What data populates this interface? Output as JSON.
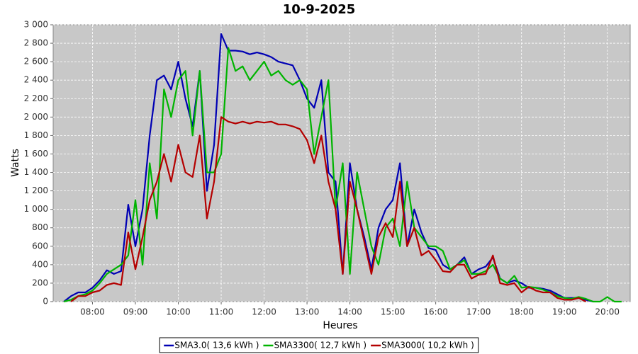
{
  "chart_data": {
    "type": "line",
    "title": "10-9-2025",
    "x_label": "Heures",
    "y_label": "Watts",
    "x": [
      440,
      450,
      460,
      470,
      480,
      490,
      500,
      510,
      520,
      530,
      540,
      550,
      560,
      570,
      580,
      590,
      600,
      610,
      620,
      630,
      640,
      650,
      660,
      670,
      680,
      690,
      700,
      710,
      720,
      730,
      740,
      750,
      760,
      770,
      780,
      790,
      800,
      810,
      820,
      830,
      840,
      850,
      860,
      870,
      880,
      890,
      900,
      910,
      920,
      930,
      940,
      950,
      960,
      970,
      980,
      990,
      1000,
      1010,
      1020,
      1030,
      1040,
      1050,
      1060,
      1070,
      1080,
      1090,
      1100,
      1110,
      1120,
      1130,
      1140,
      1150,
      1160,
      1170,
      1180,
      1190,
      1200,
      1210,
      1220
    ],
    "series": [
      {
        "name": "SMA3.0( 13,6 kWh )",
        "color": "#0000b4",
        "values": [
          0,
          60,
          100,
          100,
          150,
          230,
          340,
          300,
          330,
          1050,
          600,
          1000,
          1800,
          2400,
          2450,
          2300,
          2600,
          2200,
          1900,
          2500,
          1200,
          1700,
          2900,
          2720,
          2720,
          2710,
          2680,
          2700,
          2680,
          2650,
          2600,
          2580,
          2560,
          2400,
          2200,
          2100,
          2400,
          1400,
          1300,
          300,
          1500,
          1000,
          700,
          350,
          800,
          1000,
          1100,
          1500,
          600,
          1000,
          750,
          580,
          560,
          400,
          350,
          400,
          480,
          300,
          350,
          380,
          480,
          250,
          200,
          230,
          200,
          150,
          150,
          140,
          120,
          80,
          40,
          40,
          40,
          20,
          0,
          null,
          null,
          null,
          null
        ]
      },
      {
        "name": "SMA3300( 12,7 kWh )",
        "color": "#00b400",
        "values": [
          0,
          20,
          60,
          80,
          120,
          200,
          300,
          350,
          400,
          500,
          1100,
          400,
          1500,
          900,
          2300,
          2000,
          2400,
          2500,
          1800,
          2500,
          1400,
          1400,
          1600,
          2750,
          2500,
          2550,
          2400,
          2500,
          2600,
          2450,
          2500,
          2400,
          2350,
          2400,
          2300,
          1600,
          2000,
          2400,
          1000,
          1500,
          300,
          1400,
          1000,
          600,
          400,
          800,
          900,
          600,
          1300,
          800,
          700,
          600,
          600,
          550,
          350,
          400,
          450,
          300,
          300,
          330,
          400,
          250,
          200,
          280,
          150,
          160,
          150,
          130,
          100,
          60,
          40,
          30,
          50,
          30,
          0,
          0,
          50,
          0,
          0
        ]
      },
      {
        "name": "SMA3000( 10,2 kWh )",
        "color": "#b40000",
        "values": [
          null,
          0,
          60,
          60,
          100,
          120,
          180,
          200,
          180,
          750,
          350,
          700,
          1100,
          1300,
          1600,
          1300,
          1700,
          1400,
          1350,
          1800,
          900,
          1300,
          2000,
          1950,
          1930,
          1950,
          1930,
          1950,
          1940,
          1950,
          1920,
          1920,
          1900,
          1870,
          1750,
          1500,
          1800,
          1300,
          1000,
          300,
          1300,
          1000,
          650,
          300,
          700,
          850,
          700,
          1300,
          600,
          800,
          500,
          550,
          450,
          330,
          320,
          400,
          400,
          250,
          290,
          300,
          500,
          200,
          180,
          200,
          100,
          160,
          120,
          100,
          100,
          40,
          20,
          20,
          40,
          0,
          null,
          null,
          null,
          null,
          null
        ]
      }
    ],
    "xlim": [
      425,
      1232
    ],
    "xticks": [
      {
        "value": 480,
        "label": "08:00"
      },
      {
        "value": 540,
        "label": "09:00"
      },
      {
        "value": 600,
        "label": "10:00"
      },
      {
        "value": 660,
        "label": "11:00"
      },
      {
        "value": 720,
        "label": "12:00"
      },
      {
        "value": 780,
        "label": "13:00"
      },
      {
        "value": 840,
        "label": "14:00"
      },
      {
        "value": 900,
        "label": "15:00"
      },
      {
        "value": 960,
        "label": "16:00"
      },
      {
        "value": 1020,
        "label": "17:00"
      },
      {
        "value": 1080,
        "label": "18:00"
      },
      {
        "value": 1140,
        "label": "19:00"
      },
      {
        "value": 1200,
        "label": "20:00"
      }
    ],
    "ylim": [
      0,
      3000
    ],
    "yticks": [
      0,
      200,
      400,
      600,
      800,
      {
        "value": 1000,
        "label": "1 000"
      },
      {
        "value": 1200,
        "label": "1 200"
      },
      {
        "value": 1400,
        "label": "1 400"
      },
      {
        "value": 1600,
        "label": "1 600"
      },
      {
        "value": 1800,
        "label": "1 800"
      },
      {
        "value": 2000,
        "label": "2 000"
      },
      {
        "value": 2200,
        "label": "2 200"
      },
      {
        "value": 2400,
        "label": "2 400"
      },
      {
        "value": 2600,
        "label": "2 600"
      },
      {
        "value": 2800,
        "label": "2 800"
      },
      {
        "value": 3000,
        "label": "3 000"
      }
    ],
    "grid": true,
    "plot_background": "#c8c8c8",
    "legend": "bottom"
  }
}
